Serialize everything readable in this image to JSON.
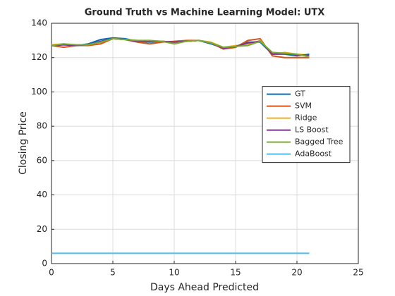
{
  "chart_data": {
    "type": "line",
    "title": "Ground Truth vs Machine Learning Model: UTX",
    "xlabel": "Days Ahead Predicted",
    "ylabel": "Closing Price",
    "x": [
      0,
      1,
      2,
      3,
      4,
      5,
      6,
      7,
      8,
      9,
      10,
      11,
      12,
      13,
      14,
      15,
      16,
      17,
      18,
      19,
      20,
      21
    ],
    "series": [
      {
        "name": "GT",
        "color": "#0072bd",
        "values": [
          127,
          127.5,
          127,
          128,
          130.5,
          131.5,
          131,
          129.5,
          129,
          129.5,
          129,
          129.5,
          130,
          128,
          125.5,
          126.5,
          129,
          129,
          122,
          122,
          121,
          122
        ]
      },
      {
        "name": "SVM",
        "color": "#d95319",
        "values": [
          127,
          126,
          127,
          127,
          128,
          131,
          130.5,
          129,
          128,
          129,
          129.5,
          130,
          130,
          128.5,
          125,
          126,
          130,
          131,
          121,
          120,
          120,
          120
        ]
      },
      {
        "name": "Ridge",
        "color": "#edb120",
        "values": [
          127.5,
          128,
          127,
          127.5,
          129,
          131,
          130.5,
          130,
          129.5,
          129.5,
          129,
          129.5,
          130,
          129,
          126,
          127,
          127.5,
          130,
          122,
          123,
          122,
          121.5
        ]
      },
      {
        "name": "LS Boost",
        "color": "#7e2f8e",
        "values": [
          127,
          127.5,
          127,
          127.5,
          129.5,
          131,
          130.5,
          129.5,
          129.5,
          129.5,
          129,
          129.5,
          130,
          128.5,
          125.5,
          126.5,
          128.5,
          129.5,
          122,
          122.5,
          121.5,
          121.5
        ]
      },
      {
        "name": "Bagged Tree",
        "color": "#77ac30",
        "values": [
          127,
          128,
          127.5,
          127.5,
          129,
          131,
          130.5,
          130,
          130,
          129.5,
          128,
          129.5,
          130,
          128.5,
          126,
          126.5,
          127,
          129.5,
          123,
          122.5,
          122,
          120.5
        ]
      },
      {
        "name": "AdaBoost",
        "color": "#4dbeee",
        "values": [
          6,
          6,
          6,
          6,
          6,
          6,
          6,
          6,
          6,
          6,
          6,
          6,
          6,
          6,
          6,
          6,
          6,
          6,
          6,
          6,
          6,
          6
        ]
      }
    ],
    "xlim": [
      0,
      25
    ],
    "xticks": [
      0,
      5,
      10,
      15,
      20,
      25
    ],
    "ylim": [
      0,
      140
    ],
    "yticks": [
      0,
      20,
      40,
      60,
      80,
      100,
      120,
      140
    ],
    "grid": true,
    "legend_position": "east"
  }
}
